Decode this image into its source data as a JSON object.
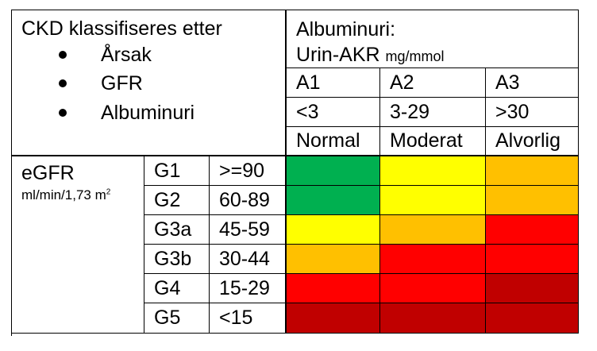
{
  "header": {
    "classification_title": "CKD klassifiseres etter",
    "criteria": [
      "Årsak",
      "GFR",
      "Albuminuri"
    ],
    "albuminuri_title": "Albuminuri:",
    "albuminuri_test": "Urin-AKR",
    "albuminuri_unit": "mg/mmol"
  },
  "albuminuria_categories": [
    {
      "code": "A1",
      "range": "<3",
      "label": "Normal"
    },
    {
      "code": "A2",
      "range": "3-29",
      "label": "Moderat"
    },
    {
      "code": "A3",
      "range": ">30",
      "label": "Alvorlig"
    }
  ],
  "egfr": {
    "label": "eGFR",
    "unit": "ml/min/1,73 m",
    "unit_sup": "2"
  },
  "gfr_categories": [
    {
      "code": "G1",
      "range": ">=90",
      "colors": [
        "green",
        "yellow",
        "orange"
      ]
    },
    {
      "code": "G2",
      "range": "60-89",
      "colors": [
        "green",
        "yellow",
        "orange"
      ]
    },
    {
      "code": "G3a",
      "range": "45-59",
      "colors": [
        "yellow",
        "orange",
        "red"
      ]
    },
    {
      "code": "G3b",
      "range": "30-44",
      "colors": [
        "orange",
        "red",
        "red"
      ]
    },
    {
      "code": "G4",
      "range": "15-29",
      "colors": [
        "red",
        "red",
        "darkred"
      ]
    },
    {
      "code": "G5",
      "range": "<15",
      "colors": [
        "darkred",
        "darkred",
        "darkred"
      ]
    }
  ],
  "colors": {
    "green": "#00b050",
    "yellow": "#ffff00",
    "orange": "#ffc000",
    "red": "#ff0000",
    "darkred": "#c00000"
  }
}
